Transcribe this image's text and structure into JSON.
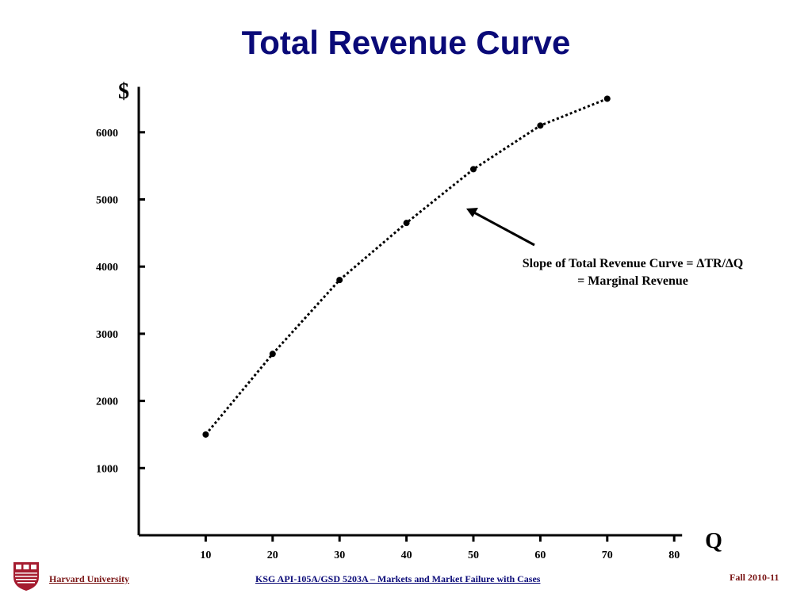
{
  "slide": {
    "title": "Total Revenue Curve",
    "annotation_line1": "Slope of Total Revenue Curve = ∆TR/∆Q",
    "annotation_line2": "= Marginal Revenue"
  },
  "footer": {
    "left": "Harvard University",
    "center": "KSG API-105A/GSD 5203A – Markets and Market Failure with Cases",
    "right": "Fall 2010-11",
    "logo_icon": "harvard-shield-icon"
  },
  "chart_data": {
    "type": "line",
    "style": "dotted line with point markers",
    "title": "",
    "xlabel": "Q",
    "ylabel": "$",
    "x_ticks": [
      10,
      20,
      30,
      40,
      50,
      60,
      70,
      80
    ],
    "y_ticks": [
      1000,
      2000,
      3000,
      4000,
      5000,
      6000
    ],
    "xlim": [
      0,
      80
    ],
    "ylim": [
      0,
      6700
    ],
    "grid": false,
    "series": [
      {
        "x": [
          10,
          20,
          30,
          40,
          50,
          60,
          70
        ],
        "y": [
          1500,
          2700,
          3800,
          4650,
          5450,
          6100,
          6500
        ]
      }
    ],
    "colors": {
      "line": "#000000",
      "title": "#0a0a78",
      "footer_accent": "#7a1515"
    }
  }
}
